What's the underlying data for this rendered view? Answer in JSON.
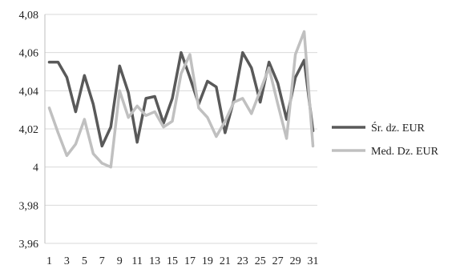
{
  "chart_data": {
    "type": "line",
    "title": "",
    "xlabel": "",
    "ylabel": "",
    "x": [
      1,
      2,
      3,
      4,
      5,
      6,
      7,
      8,
      9,
      10,
      11,
      12,
      13,
      14,
      15,
      16,
      17,
      18,
      19,
      20,
      21,
      22,
      23,
      24,
      25,
      26,
      27,
      28,
      29,
      30,
      31
    ],
    "x_tick_labels": [
      "1",
      "3",
      "5",
      "7",
      "9",
      "11",
      "13",
      "15",
      "17",
      "19",
      "21",
      "23",
      "25",
      "27",
      "29",
      "31"
    ],
    "ylim": [
      3.96,
      4.08
    ],
    "y_ticks": [
      3.96,
      3.98,
      4.0,
      4.02,
      4.04,
      4.06,
      4.08
    ],
    "y_tick_labels": [
      "3,96",
      "3,98",
      "4",
      "4,02",
      "4,04",
      "4,06",
      "4,08"
    ],
    "grid": true,
    "legend_position": "right",
    "series": [
      {
        "name": "Śr. dz. EUR",
        "color": "#595959",
        "values": [
          4.055,
          4.055,
          4.047,
          4.029,
          4.048,
          4.033,
          4.011,
          4.021,
          4.053,
          4.039,
          4.013,
          4.036,
          4.037,
          4.023,
          4.036,
          4.06,
          4.047,
          4.033,
          4.045,
          4.042,
          4.018,
          4.035,
          4.06,
          4.052,
          4.034,
          4.055,
          4.044,
          4.025,
          4.047,
          4.056,
          4.019
        ]
      },
      {
        "name": "Med. Dz. EUR",
        "color": "#c0c0c0",
        "values": [
          4.031,
          4.018,
          4.006,
          4.012,
          4.025,
          4.007,
          4.002,
          4.0,
          4.04,
          4.026,
          4.032,
          4.027,
          4.029,
          4.021,
          4.024,
          4.049,
          4.059,
          4.031,
          4.026,
          4.016,
          4.024,
          4.034,
          4.036,
          4.028,
          4.04,
          4.052,
          4.033,
          4.015,
          4.059,
          4.071,
          4.011
        ]
      }
    ]
  }
}
